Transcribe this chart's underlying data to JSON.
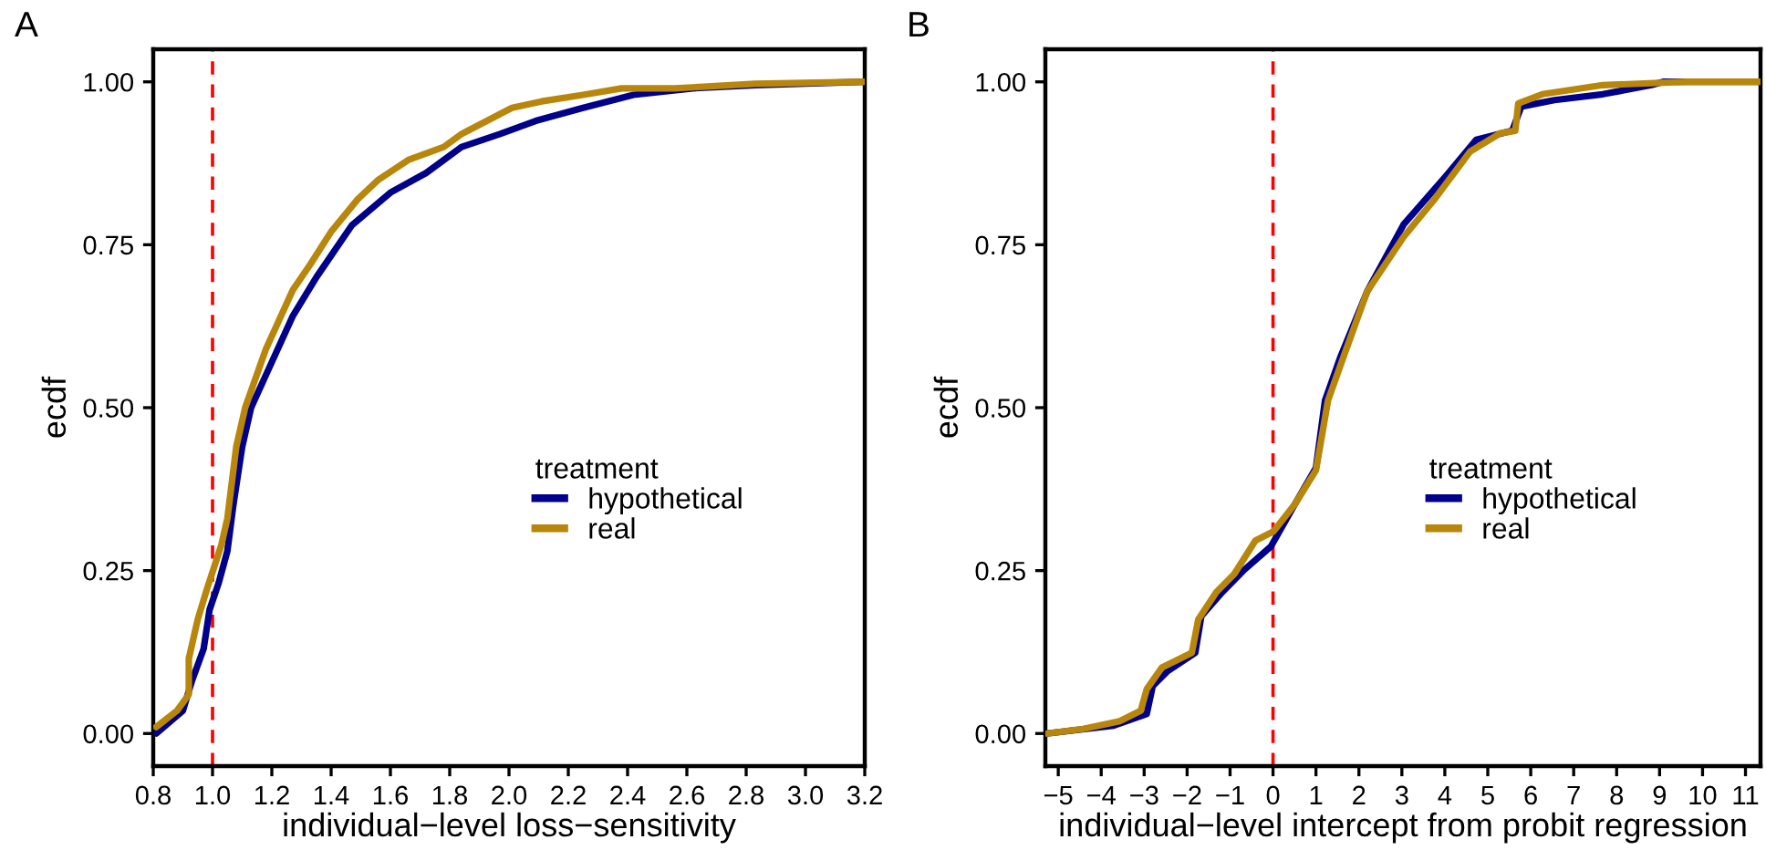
{
  "chart_data": [
    {
      "type": "line",
      "title": "A",
      "xlabel": "individual−level loss−sensitivity",
      "ylabel": "ecdf",
      "legend_title": "treatment",
      "legend": "center right",
      "grid": false,
      "xlim": [
        0.8,
        3.2
      ],
      "ylim": [
        -0.05,
        1.05
      ],
      "xticks": [
        0.8,
        {
          "value": 1.0,
          "label": "1.0"
        },
        1.2,
        1.4,
        1.6,
        1.8,
        {
          "value": 2.0,
          "label": "2.0"
        },
        2.2,
        2.4,
        2.6,
        2.8,
        {
          "value": 3.0,
          "label": "3.0"
        },
        3.2
      ],
      "yticks": [
        {
          "value": 0,
          "label": "0.00"
        },
        {
          "value": 0.25,
          "label": "0.25"
        },
        {
          "value": 0.5,
          "label": "0.50"
        },
        {
          "value": 0.75,
          "label": "0.75"
        },
        {
          "value": 1,
          "label": "1.00"
        }
      ],
      "ref_lines": [
        {
          "axis": "x",
          "value": 1.0,
          "color": "#ff0000",
          "line_style": "dashed"
        }
      ],
      "series": [
        {
          "name": "hypothetical",
          "color": "#00008b",
          "x": [
            0.81,
            0.9,
            0.93,
            0.97,
            0.99,
            1.02,
            1.05,
            1.07,
            1.1,
            1.13,
            1.19,
            1.27,
            1.35,
            1.47,
            1.6,
            1.72,
            1.84,
            1.97,
            2.09,
            2.25,
            2.42,
            2.62,
            2.83,
            3.2
          ],
          "values": [
            0.0,
            0.035,
            0.08,
            0.13,
            0.19,
            0.23,
            0.28,
            0.35,
            0.44,
            0.5,
            0.56,
            0.64,
            0.7,
            0.78,
            0.83,
            0.86,
            0.9,
            0.92,
            0.94,
            0.96,
            0.98,
            0.99,
            0.995,
            1.0
          ]
        },
        {
          "name": "real",
          "color": "#b8860b",
          "x": [
            0.81,
            0.88,
            0.92,
            0.92,
            0.95,
            0.98,
            1.03,
            1.05,
            1.08,
            1.11,
            1.18,
            1.27,
            1.33,
            1.4,
            1.49,
            1.56,
            1.66,
            1.78,
            1.84,
            2.01,
            2.11,
            2.25,
            2.38,
            2.56,
            2.83,
            3.2
          ],
          "values": [
            0.01,
            0.035,
            0.06,
            0.115,
            0.175,
            0.22,
            0.29,
            0.33,
            0.44,
            0.5,
            0.59,
            0.68,
            0.72,
            0.77,
            0.82,
            0.85,
            0.88,
            0.9,
            0.92,
            0.96,
            0.97,
            0.98,
            0.99,
            0.99,
            0.997,
            1.0
          ]
        }
      ]
    },
    {
      "type": "line",
      "title": "B",
      "xlabel": "individual−level intercept from probit regression",
      "ylabel": "ecdf",
      "legend_title": "treatment",
      "legend": "center right",
      "grid": false,
      "xlim": [
        -5.3,
        11.35
      ],
      "ylim": [
        -0.05,
        1.05
      ],
      "xticks": [
        {
          "value": -5,
          "label": "−5"
        },
        {
          "value": -4,
          "label": "−4"
        },
        {
          "value": -3,
          "label": "−3"
        },
        {
          "value": -2,
          "label": "−2"
        },
        {
          "value": -1,
          "label": "−1"
        },
        0,
        1,
        2,
        3,
        4,
        5,
        6,
        7,
        8,
        9,
        10,
        11
      ],
      "yticks": [
        {
          "value": 0,
          "label": "0.00"
        },
        {
          "value": 0.25,
          "label": "0.25"
        },
        {
          "value": 0.5,
          "label": "0.50"
        },
        {
          "value": 0.75,
          "label": "0.75"
        },
        {
          "value": 1,
          "label": "1.00"
        }
      ],
      "ref_lines": [
        {
          "axis": "x",
          "value": 0,
          "color": "#ff0000",
          "line_style": "dashed"
        }
      ],
      "series": [
        {
          "name": "hypothetical",
          "color": "#00008b",
          "x": [
            -5.26,
            -3.71,
            -2.94,
            -2.8,
            -2.45,
            -1.81,
            -1.67,
            -1.18,
            -0.69,
            -0.05,
            0.51,
            1.0,
            1.21,
            1.56,
            2.19,
            3.04,
            4.02,
            4.73,
            5.57,
            5.78,
            6.55,
            7.68,
            8.81,
            9.08,
            11.34
          ],
          "values": [
            0.0,
            0.012,
            0.03,
            0.073,
            0.096,
            0.124,
            0.18,
            0.217,
            0.25,
            0.287,
            0.352,
            0.408,
            0.511,
            0.576,
            0.678,
            0.781,
            0.855,
            0.911,
            0.925,
            0.962,
            0.972,
            0.981,
            0.995,
            1.0,
            1.0
          ]
        },
        {
          "name": "real",
          "color": "#b8860b",
          "x": [
            -5.26,
            -4.42,
            -3.57,
            -3.08,
            -2.94,
            -2.59,
            -1.89,
            -1.74,
            -1.32,
            -0.9,
            -0.41,
            0.01,
            0.51,
            1.0,
            1.28,
            1.63,
            2.19,
            3.04,
            3.74,
            4.59,
            5.29,
            5.64,
            5.71,
            6.27,
            7.68,
            9.65,
            11.34
          ],
          "values": [
            0.0,
            0.007,
            0.019,
            0.035,
            0.068,
            0.101,
            0.124,
            0.175,
            0.217,
            0.245,
            0.296,
            0.31,
            0.352,
            0.404,
            0.511,
            0.576,
            0.678,
            0.762,
            0.818,
            0.893,
            0.921,
            0.925,
            0.967,
            0.981,
            0.995,
            1.0,
            1.0
          ]
        }
      ]
    }
  ]
}
